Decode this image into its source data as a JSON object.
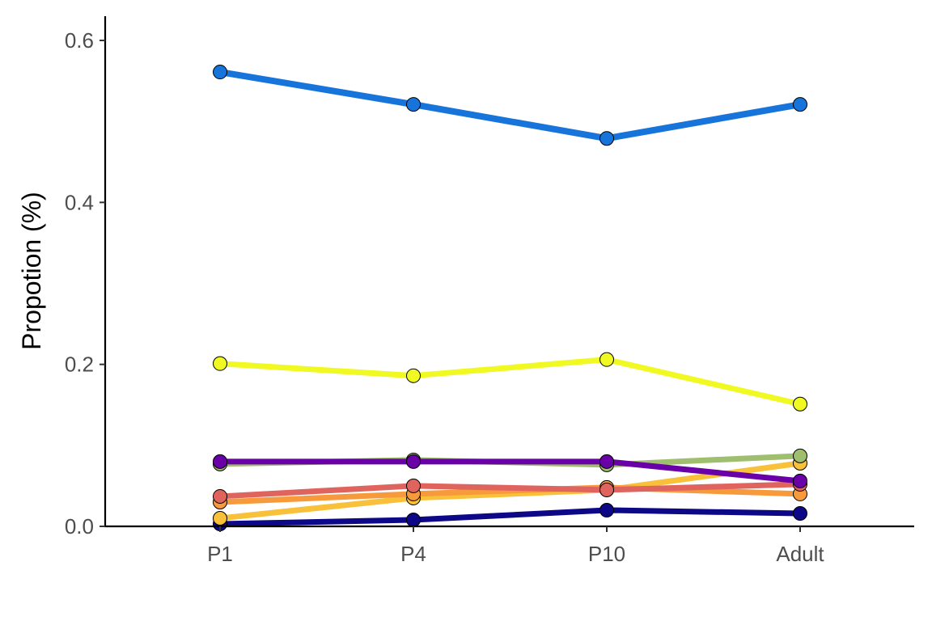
{
  "chart_data": {
    "type": "line",
    "title": "",
    "xlabel": "",
    "ylabel": "Propotion (%)",
    "categories": [
      "P1",
      "P4",
      "P10",
      "Adult"
    ],
    "ylim": [
      0,
      0.63
    ],
    "yticks": [
      0.0,
      0.2,
      0.4,
      0.6
    ],
    "ytick_labels": [
      "0.0",
      "0.2",
      "0.4",
      "0.6"
    ],
    "grid": false,
    "legend": "none",
    "series": [
      {
        "color": "#0D0887",
        "values": [
          0.003,
          0.008,
          0.02,
          0.016
        ]
      },
      {
        "color": "#F9C13A",
        "values": [
          0.01,
          0.035,
          0.045,
          0.078
        ]
      },
      {
        "color": "#F79A3C",
        "values": [
          0.03,
          0.04,
          0.048,
          0.04
        ]
      },
      {
        "color": "#E0645E",
        "values": [
          0.037,
          0.05,
          0.045,
          0.052
        ]
      },
      {
        "color": "#9FBF6E",
        "values": [
          0.077,
          0.082,
          0.076,
          0.087
        ]
      },
      {
        "color": "#6A00A8",
        "values": [
          0.08,
          0.08,
          0.08,
          0.056
        ]
      },
      {
        "color": "#F0F921",
        "values": [
          0.201,
          0.186,
          0.206,
          0.151
        ]
      },
      {
        "color": "#1774DB",
        "values": [
          0.561,
          0.521,
          0.479,
          0.521
        ]
      }
    ]
  }
}
